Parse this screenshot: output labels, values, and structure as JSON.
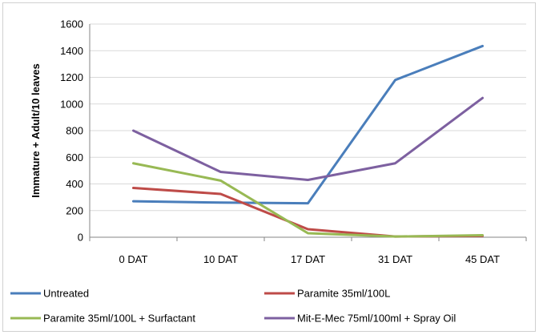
{
  "chart_data": {
    "type": "line",
    "title": "",
    "xlabel": "",
    "ylabel": "Immature + Adult/10 leaves",
    "ylim": [
      0,
      1600
    ],
    "yticks": [
      0,
      200,
      400,
      600,
      800,
      1000,
      1200,
      1400,
      1600
    ],
    "grid": true,
    "legend_position": "bottom",
    "categories": [
      "0 DAT",
      "10 DAT",
      "17 DAT",
      "31 DAT",
      "45 DAT"
    ],
    "series": [
      {
        "name": "Untreated",
        "color": "#4a7ebb",
        "values": [
          270,
          260,
          255,
          1180,
          1435
        ]
      },
      {
        "name": "Paramite 35ml/100L",
        "color": "#be4b48",
        "values": [
          370,
          325,
          60,
          5,
          10
        ]
      },
      {
        "name": "Paramite 35ml/100L + Surfactant",
        "color": "#98b954",
        "values": [
          555,
          425,
          30,
          5,
          15
        ]
      },
      {
        "name": "Mit-E-Mec 75ml/100ml + Spray Oil",
        "color": "#7d60a0",
        "values": [
          800,
          490,
          430,
          555,
          1045
        ]
      }
    ]
  }
}
